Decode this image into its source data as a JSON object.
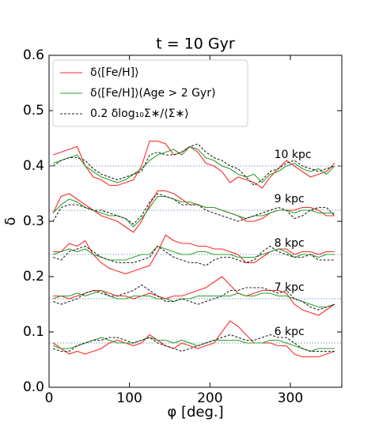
{
  "chart_data": {
    "type": "line",
    "title": "t = 10 Gyr",
    "xlabel": "φ [deg.]",
    "ylabel": "δ",
    "xlim": [
      0,
      364
    ],
    "xticks": [
      0,
      100,
      200,
      300
    ],
    "ylim": [
      0,
      0.6
    ],
    "yticks": [
      {
        "value": 0,
        "label": "0.0"
      },
      0.1,
      0.2,
      0.3,
      0.4,
      0.5,
      0.6
    ],
    "legend": "upper left",
    "ref_color": "#7a9bbd",
    "x": [
      5,
      15,
      25,
      35,
      45,
      55,
      65,
      75,
      85,
      95,
      105,
      115,
      125,
      135,
      145,
      155,
      165,
      175,
      185,
      195,
      205,
      215,
      225,
      235,
      245,
      255,
      265,
      275,
      285,
      295,
      305,
      315,
      325,
      335,
      345,
      355
    ],
    "radii": [
      {
        "label": "10 kpc",
        "level": 0.4
      },
      {
        "label": "9 kpc",
        "level": 0.32
      },
      {
        "label": "8 kpc",
        "level": 0.24
      },
      {
        "label": "7 kpc",
        "level": 0.16
      },
      {
        "label": "6 kpc",
        "level": 0.08
      }
    ],
    "series": [
      {
        "name": "δ⟨[Fe/H]⟩",
        "color": "#ff2a2a",
        "dash": false,
        "values": [
          [
            0.42,
            0.425,
            0.43,
            0.435,
            0.4,
            0.38,
            0.375,
            0.365,
            0.365,
            0.37,
            0.375,
            0.4,
            0.445,
            0.445,
            0.44,
            0.42,
            0.425,
            0.435,
            0.425,
            0.405,
            0.4,
            0.39,
            0.37,
            0.38,
            0.375,
            0.37,
            0.36,
            0.38,
            0.395,
            0.41,
            0.4,
            0.39,
            0.38,
            0.385,
            0.39,
            0.405
          ],
          [
            0.315,
            0.345,
            0.35,
            0.34,
            0.33,
            0.32,
            0.31,
            0.305,
            0.3,
            0.29,
            0.28,
            0.3,
            0.33,
            0.355,
            0.355,
            0.35,
            0.34,
            0.33,
            0.33,
            0.325,
            0.325,
            0.32,
            0.315,
            0.31,
            0.3,
            0.3,
            0.305,
            0.315,
            0.32,
            0.32,
            0.32,
            0.325,
            0.325,
            0.32,
            0.31,
            0.31
          ],
          [
            0.245,
            0.245,
            0.26,
            0.255,
            0.265,
            0.24,
            0.225,
            0.215,
            0.21,
            0.205,
            0.21,
            0.215,
            0.22,
            0.245,
            0.275,
            0.265,
            0.26,
            0.26,
            0.255,
            0.255,
            0.25,
            0.25,
            0.245,
            0.24,
            0.225,
            0.225,
            0.235,
            0.245,
            0.25,
            0.25,
            0.24,
            0.245,
            0.245,
            0.24,
            0.245,
            0.245
          ],
          [
            0.165,
            0.165,
            0.16,
            0.165,
            0.17,
            0.175,
            0.175,
            0.17,
            0.165,
            0.165,
            0.16,
            0.165,
            0.17,
            0.165,
            0.16,
            0.165,
            0.165,
            0.17,
            0.175,
            0.18,
            0.19,
            0.2,
            0.185,
            0.17,
            0.165,
            0.17,
            0.175,
            0.175,
            0.175,
            0.17,
            0.15,
            0.14,
            0.135,
            0.13,
            0.14,
            0.15
          ],
          [
            0.08,
            0.07,
            0.06,
            0.065,
            0.06,
            0.065,
            0.07,
            0.08,
            0.085,
            0.08,
            0.075,
            0.08,
            0.095,
            0.085,
            0.075,
            0.07,
            0.08,
            0.075,
            0.07,
            0.075,
            0.08,
            0.1,
            0.12,
            0.11,
            0.095,
            0.08,
            0.08,
            0.08,
            0.075,
            0.075,
            0.06,
            0.055,
            0.055,
            0.055,
            0.06,
            0.065
          ]
        ]
      },
      {
        "name": "δ⟨[Fe/H]⟩(Age > 2 Gyr)",
        "color": "#2ca02c",
        "dash": false,
        "values": [
          [
            0.405,
            0.41,
            0.415,
            0.42,
            0.4,
            0.39,
            0.38,
            0.375,
            0.37,
            0.375,
            0.385,
            0.395,
            0.41,
            0.42,
            0.425,
            0.43,
            0.42,
            0.435,
            0.43,
            0.415,
            0.41,
            0.4,
            0.395,
            0.385,
            0.38,
            0.385,
            0.37,
            0.385,
            0.39,
            0.4,
            0.405,
            0.395,
            0.39,
            0.395,
            0.385,
            0.4
          ],
          [
            0.315,
            0.33,
            0.34,
            0.335,
            0.325,
            0.32,
            0.315,
            0.31,
            0.31,
            0.305,
            0.29,
            0.305,
            0.325,
            0.345,
            0.345,
            0.34,
            0.335,
            0.335,
            0.33,
            0.325,
            0.325,
            0.32,
            0.315,
            0.31,
            0.305,
            0.31,
            0.31,
            0.315,
            0.32,
            0.32,
            0.315,
            0.32,
            0.32,
            0.315,
            0.315,
            0.315
          ],
          [
            0.24,
            0.245,
            0.25,
            0.245,
            0.25,
            0.24,
            0.235,
            0.23,
            0.23,
            0.23,
            0.235,
            0.24,
            0.24,
            0.255,
            0.25,
            0.245,
            0.24,
            0.24,
            0.245,
            0.245,
            0.24,
            0.24,
            0.24,
            0.235,
            0.235,
            0.235,
            0.24,
            0.245,
            0.25,
            0.245,
            0.235,
            0.24,
            0.24,
            0.235,
            0.24,
            0.24
          ],
          [
            0.16,
            0.165,
            0.165,
            0.17,
            0.165,
            0.17,
            0.175,
            0.165,
            0.16,
            0.16,
            0.165,
            0.165,
            0.165,
            0.16,
            0.16,
            0.155,
            0.16,
            0.16,
            0.165,
            0.165,
            0.165,
            0.165,
            0.165,
            0.17,
            0.165,
            0.165,
            0.17,
            0.17,
            0.165,
            0.165,
            0.16,
            0.155,
            0.15,
            0.145,
            0.145,
            0.15
          ],
          [
            0.075,
            0.07,
            0.07,
            0.075,
            0.08,
            0.085,
            0.09,
            0.085,
            0.08,
            0.08,
            0.08,
            0.085,
            0.09,
            0.085,
            0.085,
            0.08,
            0.085,
            0.08,
            0.075,
            0.08,
            0.085,
            0.085,
            0.085,
            0.085,
            0.08,
            0.08,
            0.08,
            0.085,
            0.085,
            0.08,
            0.075,
            0.07,
            0.065,
            0.07,
            0.07,
            0.07
          ]
        ]
      },
      {
        "name": "0.2 δlog₁₀Σ∗/⟨Σ∗⟩",
        "color": "#222222",
        "dash": true,
        "values": [
          [
            0.4,
            0.41,
            0.415,
            0.415,
            0.41,
            0.395,
            0.385,
            0.38,
            0.375,
            0.38,
            0.385,
            0.39,
            0.42,
            0.425,
            0.42,
            0.42,
            0.425,
            0.435,
            0.44,
            0.425,
            0.415,
            0.41,
            0.4,
            0.395,
            0.38,
            0.365,
            0.375,
            0.39,
            0.395,
            0.405,
            0.41,
            0.4,
            0.395,
            0.39,
            0.395,
            0.4
          ],
          [
            0.3,
            0.325,
            0.33,
            0.33,
            0.325,
            0.32,
            0.32,
            0.315,
            0.31,
            0.305,
            0.295,
            0.31,
            0.335,
            0.35,
            0.345,
            0.34,
            0.33,
            0.33,
            0.33,
            0.32,
            0.315,
            0.31,
            0.305,
            0.3,
            0.305,
            0.31,
            0.315,
            0.32,
            0.325,
            0.32,
            0.305,
            0.31,
            0.32,
            0.325,
            0.325,
            0.31
          ],
          [
            0.235,
            0.23,
            0.245,
            0.25,
            0.255,
            0.245,
            0.235,
            0.23,
            0.225,
            0.225,
            0.225,
            0.23,
            0.235,
            0.255,
            0.245,
            0.235,
            0.23,
            0.225,
            0.225,
            0.22,
            0.23,
            0.235,
            0.235,
            0.23,
            0.225,
            0.23,
            0.245,
            0.255,
            0.245,
            0.24,
            0.235,
            0.235,
            0.24,
            0.23,
            0.23,
            0.23
          ],
          [
            0.155,
            0.15,
            0.155,
            0.16,
            0.17,
            0.175,
            0.17,
            0.165,
            0.165,
            0.17,
            0.175,
            0.185,
            0.175,
            0.165,
            0.155,
            0.155,
            0.16,
            0.155,
            0.15,
            0.155,
            0.16,
            0.165,
            0.175,
            0.175,
            0.18,
            0.18,
            0.18,
            0.175,
            0.17,
            0.175,
            0.16,
            0.155,
            0.145,
            0.14,
            0.145,
            0.15
          ],
          [
            0.07,
            0.065,
            0.065,
            0.075,
            0.08,
            0.085,
            0.085,
            0.09,
            0.09,
            0.085,
            0.08,
            0.085,
            0.09,
            0.08,
            0.075,
            0.07,
            0.065,
            0.07,
            0.075,
            0.08,
            0.085,
            0.09,
            0.095,
            0.09,
            0.085,
            0.085,
            0.09,
            0.095,
            0.09,
            0.09,
            0.08,
            0.07,
            0.065,
            0.065,
            0.065,
            0.065
          ]
        ]
      }
    ]
  }
}
